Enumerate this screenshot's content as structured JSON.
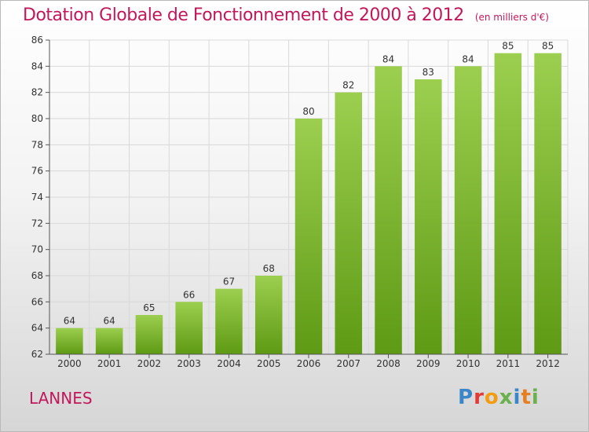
{
  "header": {
    "title": "Dotation Globale de Fonctionnement de 2000 à 2012",
    "subtitle": "(en milliers d'€)"
  },
  "footer": {
    "place": "LANNES",
    "logo": {
      "text": "Proxiti",
      "letter_colors": [
        "#3a86c8",
        "#e53935",
        "#f39c12",
        "#6ab04c",
        "#3a86c8",
        "#e67e22",
        "#6ab04c"
      ]
    }
  },
  "colors": {
    "title": "#c2185b",
    "bar_top": "#9ccf4f",
    "bar_bottom": "#5e9a14",
    "grid": "#d9d9d9",
    "axis": "#555555"
  },
  "chart_data": {
    "type": "bar",
    "title": "Dotation Globale de Fonctionnement de 2000 à 2012",
    "subtitle": "(en milliers d'€)",
    "categories": [
      "2000",
      "2001",
      "2002",
      "2003",
      "2004",
      "2005",
      "2006",
      "2007",
      "2008",
      "2009",
      "2010",
      "2011",
      "2012"
    ],
    "values": [
      64,
      64,
      65,
      66,
      67,
      68,
      80,
      82,
      84,
      83,
      84,
      85,
      85
    ],
    "ylim": [
      62,
      86
    ],
    "yticks": [
      62,
      64,
      66,
      68,
      70,
      72,
      74,
      76,
      78,
      80,
      82,
      84,
      86
    ],
    "grid": true,
    "data_labels": true
  }
}
